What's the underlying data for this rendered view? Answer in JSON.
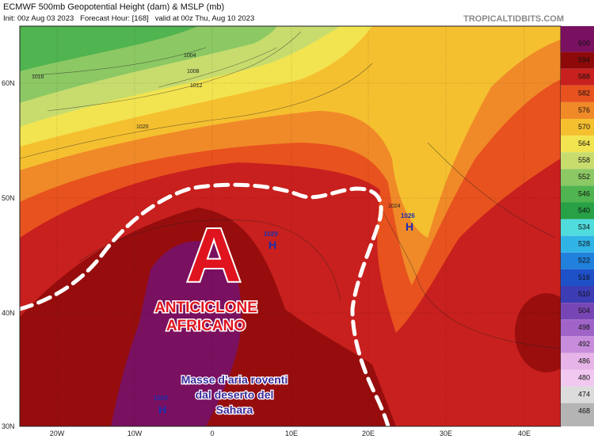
{
  "header": {
    "title": "ECMWF 500mb Geopotential Height (dam) & MSLP (mb)",
    "subtitle": "Init: 00z Aug 03 2023   Forecast Hour: [168]   valid at 00z Thu, Aug 10 2023",
    "site": "TROPICALTIDBITS.COM"
  },
  "colorbar": {
    "labels": [
      600,
      594,
      588,
      582,
      576,
      570,
      564,
      558,
      552,
      546,
      540,
      534,
      528,
      522,
      516,
      510,
      504,
      498,
      492,
      486,
      480,
      474,
      468
    ],
    "colors": [
      "#7a1060",
      "#8e0a0a",
      "#c8201e",
      "#e8521e",
      "#f08a28",
      "#f5c030",
      "#f2e450",
      "#c8dc6e",
      "#8cc864",
      "#50b450",
      "#28a046",
      "#50dcdc",
      "#30b4e6",
      "#2080dc",
      "#1e50c8",
      "#3c3cb4",
      "#7846b4",
      "#a064c8",
      "#c88cdc",
      "#e6b4e6",
      "#f0c8f0",
      "#dcdcdc",
      "#b4b4b4"
    ]
  },
  "latitude_labels": [
    "60N",
    "50N",
    "40N",
    "30N"
  ],
  "longitude_labels": [
    "20W",
    "10W",
    "0",
    "10E",
    "20E",
    "30E",
    "40E"
  ],
  "annotations": {
    "symbol": "A",
    "line1": "ANTICICLONE",
    "line2": "AFRICANO",
    "note": [
      "Masse d’aria roventi",
      "dal deserto del",
      "Sahara"
    ]
  },
  "highs": [
    {
      "pressure": "1029",
      "label": "H"
    },
    {
      "pressure": "1026",
      "label": "H"
    },
    {
      "pressure": "1029",
      "label": "H"
    }
  ],
  "isobar_labels": [
    "1004",
    "1008",
    "1012",
    "1016",
    "1020",
    "1024"
  ]
}
